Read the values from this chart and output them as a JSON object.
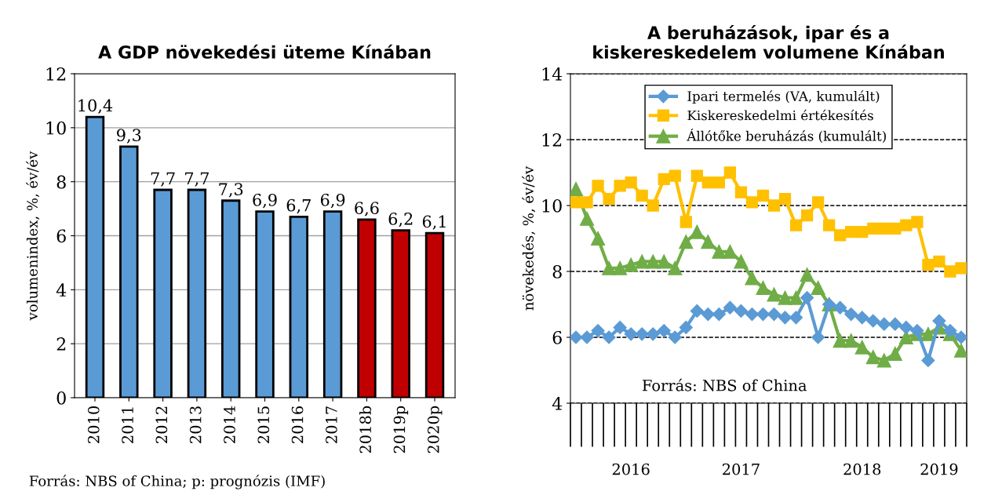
{
  "chart_data": [
    {
      "type": "bar",
      "title": "A GDP növekedési üteme Kínában",
      "ylabel": "volumenindex, %, év/év",
      "categories": [
        "2010",
        "2011",
        "2012",
        "2013",
        "2014",
        "2015",
        "2016",
        "2017",
        "2018b",
        "2019p",
        "2020p"
      ],
      "values": [
        10.4,
        9.3,
        7.7,
        7.7,
        7.3,
        6.9,
        6.7,
        6.9,
        6.6,
        6.2,
        6.1
      ],
      "value_labels": [
        "10,4",
        "9,3",
        "7,7",
        "7,7",
        "7,3",
        "6,9",
        "6,7",
        "6,9",
        "6,6",
        "6,2",
        "6,1"
      ],
      "colors": [
        "#5b9bd5",
        "#5b9bd5",
        "#5b9bd5",
        "#5b9bd5",
        "#5b9bd5",
        "#5b9bd5",
        "#5b9bd5",
        "#5b9bd5",
        "#c00000",
        "#c00000",
        "#c00000"
      ],
      "ylim": [
        0,
        12
      ],
      "yticks": [
        0,
        2,
        4,
        6,
        8,
        10,
        12
      ],
      "grid": "y",
      "legend": false,
      "annotations": [
        "Forrás: NBS of China; p: prognózis (IMF)"
      ]
    },
    {
      "type": "line",
      "title": "A beruházások, ipar és a\nkiskereskedelem volumene Kínában",
      "ylabel": "növekedés, %, év/év",
      "categories": [
        null,
        null,
        null,
        null,
        null,
        "2016",
        null,
        null,
        null,
        null,
        null,
        null,
        null,
        null,
        null,
        "2017",
        null,
        null,
        null,
        null,
        null,
        null,
        null,
        null,
        null,
        null,
        "2018",
        null,
        null,
        null,
        null,
        null,
        null,
        "2019",
        null,
        null
      ],
      "series": [
        {
          "name": "Ipari termelés (VA, kumulált)",
          "color": "#5b9bd5",
          "marker": "diamond",
          "values": [
            6.0,
            6.0,
            6.2,
            6.0,
            6.3,
            6.1,
            6.1,
            6.1,
            6.2,
            6.0,
            6.3,
            6.8,
            6.7,
            6.7,
            6.9,
            6.8,
            6.7,
            6.7,
            6.7,
            6.6,
            6.6,
            7.2,
            6.0,
            7.0,
            6.9,
            6.7,
            6.6,
            6.5,
            6.4,
            6.4,
            6.3,
            6.2,
            5.3,
            6.5,
            6.2,
            6.0
          ]
        },
        {
          "name": "Kiskereskedelmi értékesítés",
          "color": "#ffc000",
          "marker": "square",
          "values": [
            10.1,
            10.1,
            10.6,
            10.2,
            10.6,
            10.7,
            10.3,
            10.0,
            10.8,
            10.9,
            9.5,
            10.9,
            10.7,
            10.7,
            11.0,
            10.4,
            10.1,
            10.3,
            10.0,
            10.2,
            9.4,
            9.7,
            10.1,
            9.4,
            9.1,
            9.2,
            9.2,
            9.3,
            9.3,
            9.3,
            9.4,
            9.5,
            8.2,
            8.3,
            8.0,
            8.1
          ]
        },
        {
          "name": "Állótőke beruházás (kumulált)",
          "color": "#70ad47",
          "marker": "triangle",
          "values": [
            10.5,
            9.6,
            9.0,
            8.1,
            8.1,
            8.2,
            8.3,
            8.3,
            8.3,
            8.1,
            8.9,
            9.2,
            8.9,
            8.6,
            8.6,
            8.3,
            7.8,
            7.5,
            7.3,
            7.2,
            7.2,
            7.9,
            7.5,
            7.0,
            5.9,
            5.9,
            5.7,
            5.4,
            5.3,
            5.5,
            6.0,
            6.1,
            6.1,
            6.3,
            6.1,
            5.6
          ]
        }
      ],
      "ylim": [
        4,
        14
      ],
      "yticks": [
        4,
        6,
        8,
        10,
        12,
        14
      ],
      "grid": "y",
      "line_style": "solid",
      "legend": "top",
      "annotations": [
        "Forrás: NBS of China"
      ]
    }
  ]
}
